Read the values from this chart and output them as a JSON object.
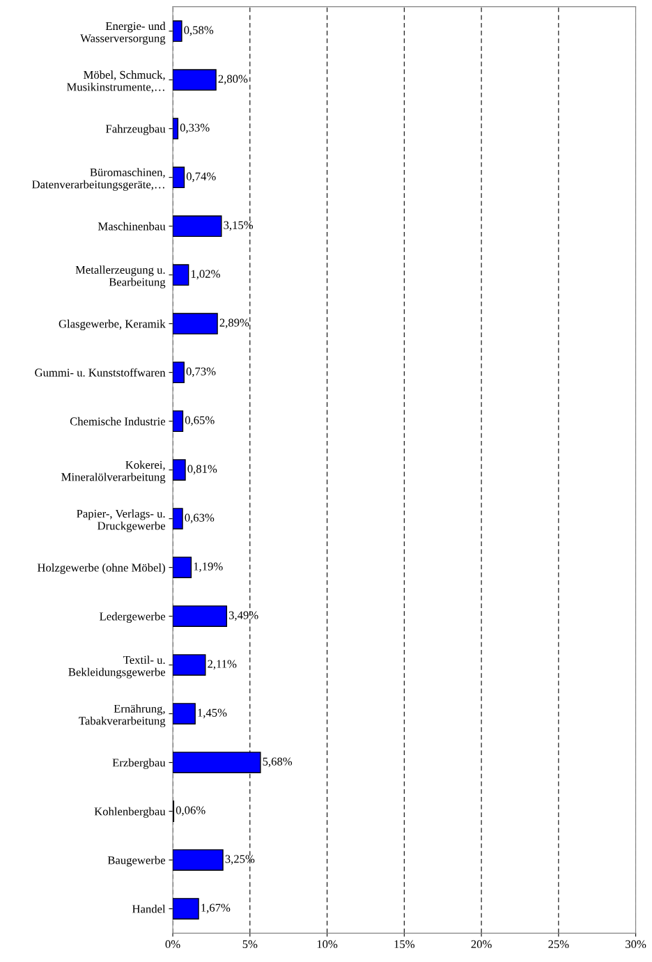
{
  "chart_data": {
    "type": "bar",
    "orientation": "horizontal",
    "categories": [
      "Energie- und\nWasserversorgung",
      "Möbel, Schmuck,\nMusikinstrumente,…",
      "Fahrzeugbau",
      "Büromaschinen,\nDatenverarbeitungsgeräte,…",
      "Maschinenbau",
      "Metallerzeugung u.\nBearbeitung",
      "Glasgewerbe, Keramik",
      "Gummi- u. Kunststoffwaren",
      "Chemische Industrie",
      "Kokerei,\nMineralölverarbeitung",
      "Papier-, Verlags- u.\nDruckgewerbe",
      "Holzgewerbe (ohne Möbel)",
      "Ledergewerbe",
      "Textil- u.\nBekleidungsgewerbe",
      "Ernährung,\nTabakverarbeitung",
      "Erzbergbau",
      "Kohlenbergbau",
      "Baugewerbe",
      "Handel"
    ],
    "values": [
      0.58,
      2.8,
      0.33,
      0.74,
      3.15,
      1.02,
      2.89,
      0.73,
      0.65,
      0.81,
      0.63,
      1.19,
      3.49,
      2.11,
      1.45,
      5.68,
      0.06,
      3.25,
      1.67
    ],
    "value_labels": [
      "0,58%",
      "2,80%",
      "0,33%",
      "0,74%",
      "3,15%",
      "1,02%",
      "2,89%",
      "0,73%",
      "0,65%",
      "0,81%",
      "0,63%",
      "1,19%",
      "3,49%",
      "2,11%",
      "1,45%",
      "5,68%",
      "0,06%",
      "3,25%",
      "1,67%"
    ],
    "color": "#0000ff",
    "xlim": [
      0,
      30
    ],
    "xticks": [
      {
        "value": 0,
        "label": "0%"
      },
      {
        "value": 5,
        "label": "5%"
      },
      {
        "value": 10,
        "label": "10%"
      },
      {
        "value": 15,
        "label": "15%"
      },
      {
        "value": 20,
        "label": "20%"
      },
      {
        "value": 25,
        "label": "25%"
      },
      {
        "value": 30,
        "label": "30%"
      }
    ],
    "grid": "x"
  }
}
